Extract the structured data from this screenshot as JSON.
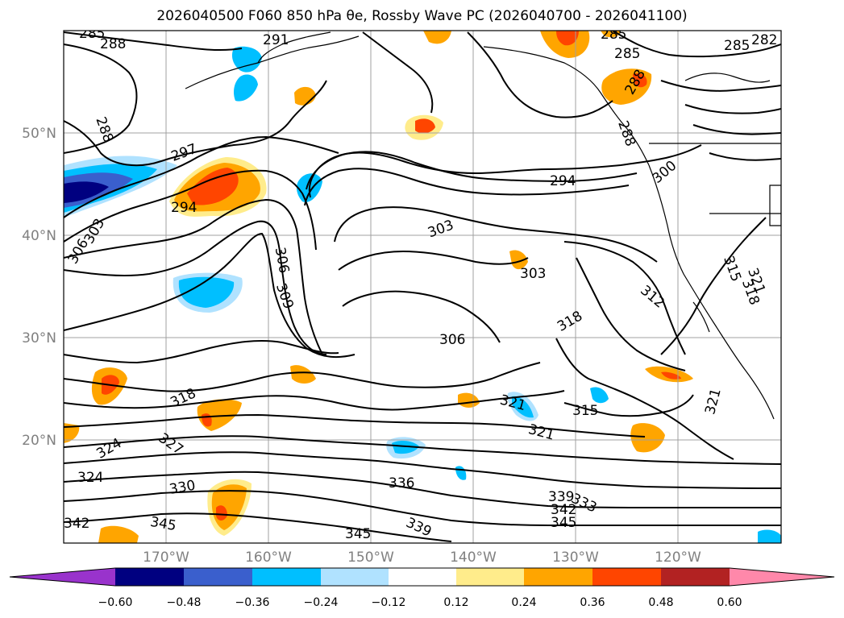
{
  "title": "2026040500 F060 850 hPa θe, Rossby Wave PC (2026040700 - 2026041100)",
  "latitude_labels": [
    "50°N",
    "40°N",
    "30°N",
    "20°N"
  ],
  "longitude_labels": [
    "170°W",
    "160°W",
    "150°W",
    "140°W",
    "130°W",
    "120°W"
  ],
  "colorbar": {
    "tick_labels": [
      "−0.60",
      "−0.48",
      "−0.36",
      "−0.24",
      "−0.12",
      "0.12",
      "0.24",
      "0.36",
      "0.48",
      "0.60"
    ],
    "colors": [
      "#9933cc",
      "#000080",
      "#3a5fcd",
      "#00bfff",
      "#b0e2ff",
      "#ffffff",
      "#ffec8b",
      "#ffa500",
      "#ff4500",
      "#b22222",
      "#ff88aa"
    ]
  },
  "contour_labels": [
    "285",
    "288",
    "291",
    "285",
    "285",
    "282",
    "285",
    "288",
    "288",
    "297",
    "294",
    "288",
    "294",
    "300",
    "306",
    "303",
    "303",
    "306",
    "309",
    "303",
    "306",
    "318",
    "312",
    "315",
    "318",
    "321",
    "318",
    "321",
    "315",
    "321",
    "321",
    "327",
    "324",
    "324",
    "330",
    "336",
    "339",
    "342",
    "345",
    "345",
    "339",
    "333",
    "342",
    "345"
  ],
  "colors": {
    "contour": "#000000",
    "grid": "#a0a0a0",
    "coastline": "#000000",
    "axis_label": "#808080"
  }
}
